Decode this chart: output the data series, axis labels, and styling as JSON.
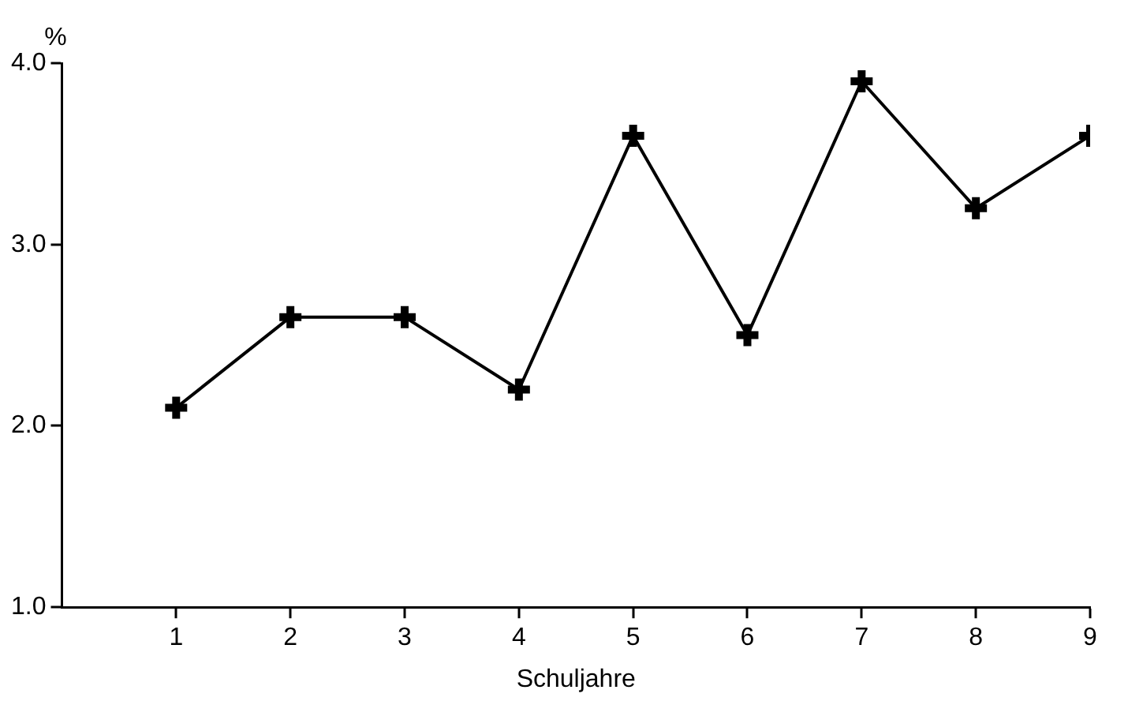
{
  "chart_data": {
    "type": "line",
    "xlabel": "Schuljahre",
    "ylabel": "%",
    "x": [
      1,
      2,
      3,
      4,
      5,
      6,
      7,
      8,
      9
    ],
    "series": [
      {
        "color": "#000000",
        "values": [
          2.1,
          2.6,
          2.6,
          2.2,
          3.6,
          2.5,
          3.9,
          3.2,
          3.6
        ]
      }
    ],
    "xlim": [
      0,
      9
    ],
    "xticks": [
      1,
      2,
      3,
      4,
      5,
      6,
      7,
      8,
      9
    ],
    "ylim": [
      1.0,
      4.0
    ],
    "yticks": [
      {
        "value": 1,
        "label": "1.0"
      },
      {
        "value": 2,
        "label": "2.0"
      },
      {
        "value": 3,
        "label": "3.0"
      },
      {
        "value": 4,
        "label": "4.0"
      }
    ],
    "grid": false,
    "legend": false,
    "marker": "cross",
    "line_style": "solid"
  }
}
